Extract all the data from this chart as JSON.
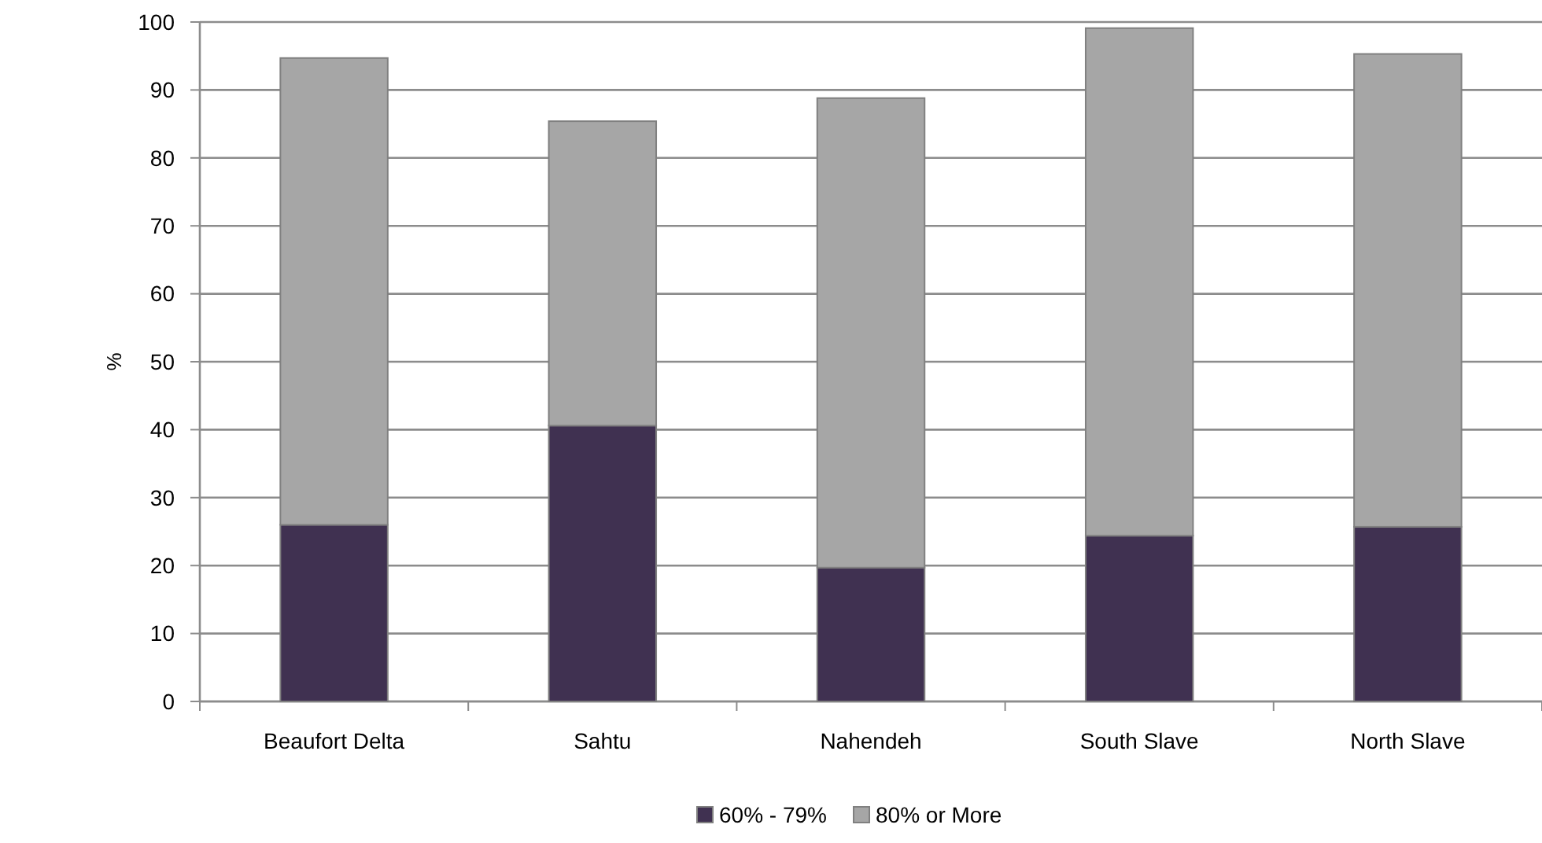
{
  "chart_data": {
    "type": "bar",
    "ylabel": "%",
    "stacked": true,
    "categories": [
      "Beaufort Delta",
      "Sahtu",
      "Nahendeh",
      "South Slave",
      "North Slave"
    ],
    "series": [
      {
        "name": "60% - 79%",
        "color": "#403151",
        "values": [
          26.0,
          40.6,
          19.7,
          24.4,
          25.7
        ]
      },
      {
        "name": "80% or More",
        "color": "#a6a6a6",
        "values": [
          68.7,
          44.8,
          69.1,
          74.7,
          69.6
        ]
      }
    ],
    "ylim": [
      0,
      100
    ],
    "yticks": [
      0,
      10,
      20,
      30,
      40,
      50,
      60,
      70,
      80,
      90,
      100
    ],
    "grid": "y",
    "legend": "bottom"
  }
}
